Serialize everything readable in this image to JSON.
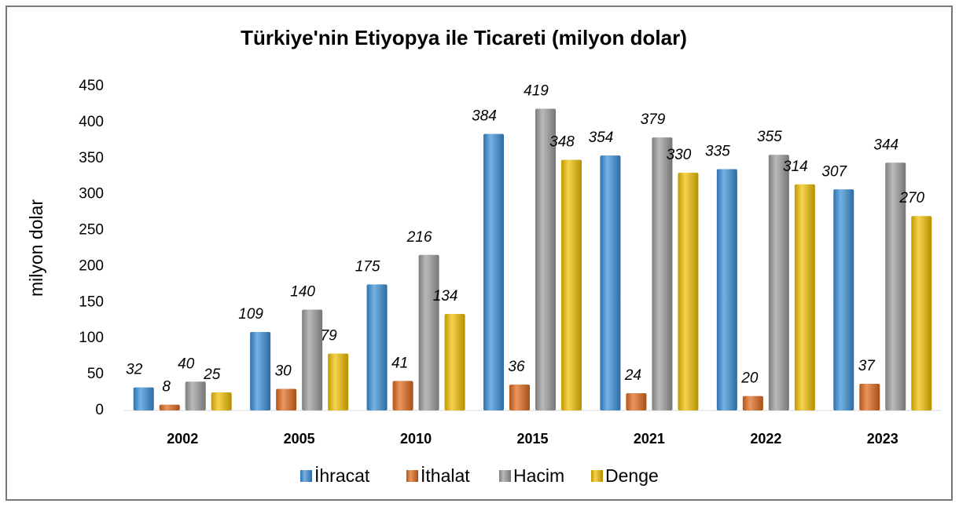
{
  "chart_data": {
    "type": "bar",
    "title": "Türkiye'nin Etiyopya ile Ticareti (milyon dolar)",
    "y_label": "milyon dolar",
    "categories": [
      "2002",
      "2005",
      "2010",
      "2015",
      "2021",
      "2022",
      "2023"
    ],
    "series": [
      {
        "name": "İhracat",
        "color": "#3a8fd8",
        "values": [
          32,
          109,
          175,
          384,
          354,
          335,
          307
        ]
      },
      {
        "name": "İthalat",
        "color": "#e0691c",
        "values": [
          8,
          30,
          41,
          36,
          24,
          20,
          37
        ]
      },
      {
        "name": "Hacim",
        "color": "#9c9c9c",
        "values": [
          40,
          140,
          216,
          419,
          379,
          355,
          344
        ]
      },
      {
        "name": "Denge",
        "color": "#f0c000",
        "values": [
          25,
          79,
          134,
          348,
          330,
          314,
          270
        ]
      }
    ],
    "ylim": [
      0,
      450
    ],
    "yticks": [
      0,
      50,
      100,
      150,
      200,
      250,
      300,
      350,
      400,
      450
    ],
    "grid": false,
    "legend": "bottom"
  }
}
